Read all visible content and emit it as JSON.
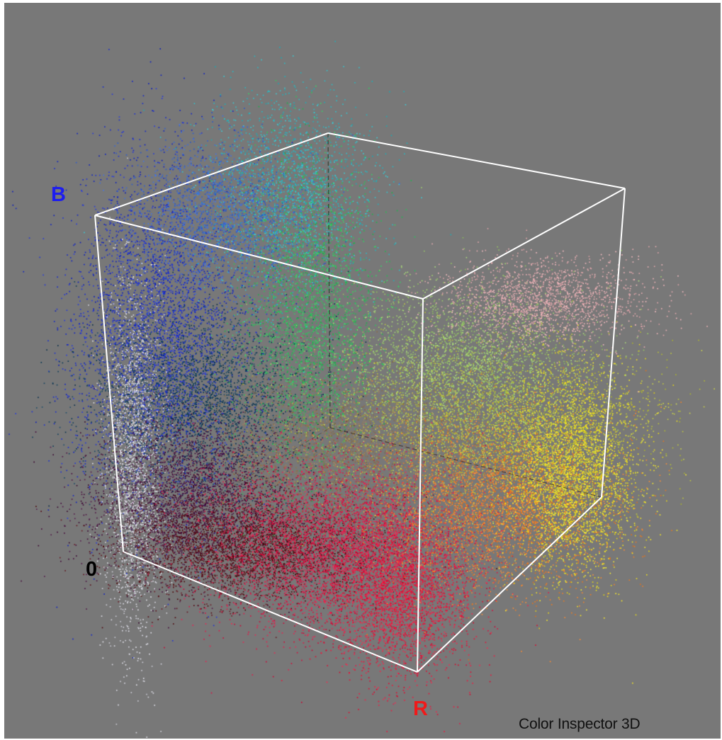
{
  "app": {
    "caption": "Color Inspector 3D"
  },
  "viewport": {
    "background": "#787878",
    "frame_color": "#ffffff"
  },
  "axes": {
    "b_label": "B",
    "b_color": "#1d1df0",
    "r_label": "R",
    "r_color": "#f01a1a",
    "origin_label": "0",
    "origin_color": "#000000"
  },
  "point_cloud": {
    "space": "RGB",
    "dominant_colors": [
      "#0a28d2",
      "#e01040",
      "#f0e020",
      "#20e060",
      "#20d0d0",
      "#f0b0b0",
      "#5a0a20"
    ]
  }
}
